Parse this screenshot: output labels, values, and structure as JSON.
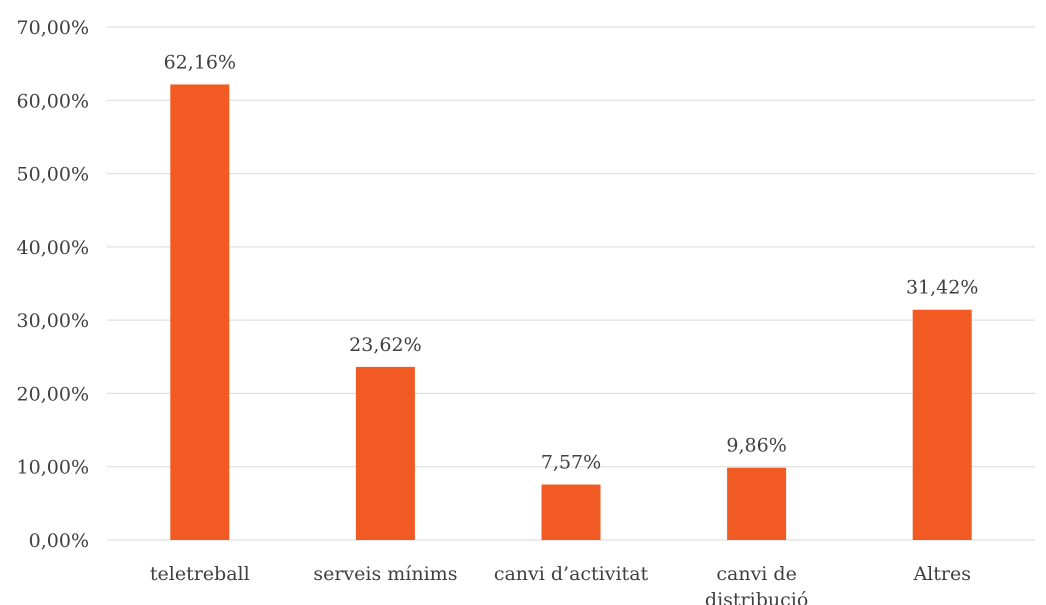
{
  "chart_data": {
    "type": "bar",
    "categories": [
      "teletreball",
      "serveis mínims",
      "canvi d’activitat",
      "canvi de distribució",
      "Altres"
    ],
    "category_lines": [
      [
        "teletreball"
      ],
      [
        "serveis mínims"
      ],
      [
        "canvi d’activitat"
      ],
      [
        "canvi de",
        "distribució"
      ],
      [
        "Altres"
      ]
    ],
    "values": [
      62.16,
      23.62,
      7.57,
      9.86,
      31.42
    ],
    "data_labels": [
      "62,16%",
      "23,62%",
      "7,57%",
      "9,86%",
      "31,42%"
    ],
    "yticks": [
      0,
      10,
      20,
      30,
      40,
      50,
      60,
      70
    ],
    "ytick_labels": [
      "0,00%",
      "10,00%",
      "20,00%",
      "30,00%",
      "40,00%",
      "50,00%",
      "60,00%",
      "70,00%"
    ],
    "ylim": [
      0,
      70
    ],
    "grid": true,
    "legend": false,
    "bar_color": "#f15a22",
    "title": "",
    "xlabel": "",
    "ylabel": ""
  }
}
